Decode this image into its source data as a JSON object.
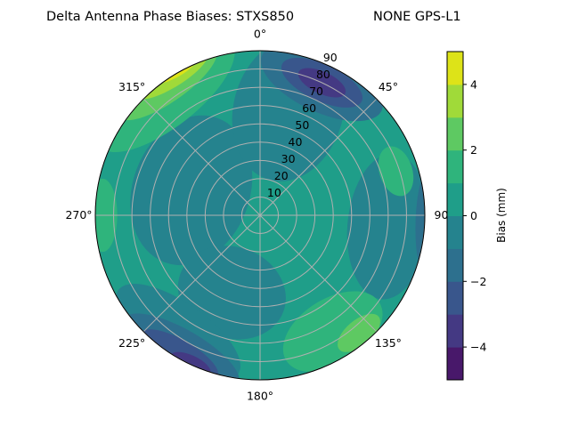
{
  "chart_data": {
    "type": "heatmap",
    "subtype": "polar filled contour",
    "title_left": "Delta Antenna Phase Biases: STXS850",
    "title_right": "NONE GPS-L1",
    "angular_tick_labels": [
      "0°",
      "45°",
      "90",
      "135°",
      "180°",
      "225°",
      "270°",
      "315°"
    ],
    "angular_tick_values": [
      0,
      45,
      90,
      135,
      180,
      225,
      270,
      315
    ],
    "radial_tick_labels": [
      "10",
      "20",
      "30",
      "40",
      "50",
      "60",
      "70",
      "80",
      "90"
    ],
    "radial_range": [
      0,
      90
    ],
    "theta_direction": "clockwise",
    "theta_zero": "north",
    "grid": true,
    "colorbar": {
      "label": "Bias (mm)",
      "levels": [
        -5,
        -4,
        -3,
        -2,
        -1,
        0,
        1,
        2,
        3,
        4,
        5
      ],
      "tick_values": [
        -4,
        -2,
        0,
        2,
        4
      ],
      "tick_labels": [
        "−4",
        "−2",
        "0",
        "2",
        "4"
      ],
      "colormap": "viridis",
      "band_colors": [
        "#48186a",
        "#443983",
        "#39568c",
        "#2d708e",
        "#25838e",
        "#1f9e89",
        "#2fb47c",
        "#5ec962",
        "#a0da39",
        "#dde318"
      ]
    },
    "background_level_band": [
      0,
      1
    ],
    "regions": [
      {
        "az": 290,
        "r": 40,
        "rx": 42,
        "ry": 32,
        "band": [
          -1,
          0
        ]
      },
      {
        "az": 15,
        "r": 60,
        "rx": 30,
        "ry": 40,
        "band": [
          -1,
          0
        ]
      },
      {
        "az": 95,
        "r": 70,
        "rx": 40,
        "ry": 22,
        "band": [
          -1,
          0
        ]
      },
      {
        "az": 200,
        "r": 45,
        "rx": 30,
        "ry": 25,
        "band": [
          -1,
          0
        ]
      },
      {
        "az": 215,
        "r": 78,
        "rx": 40,
        "ry": 16,
        "band": [
          -1,
          0
        ]
      },
      {
        "az": 25,
        "r": 80,
        "rx": 36,
        "ry": 16,
        "band": [
          -2,
          -1
        ]
      },
      {
        "az": 25,
        "r": 80,
        "rx": 24,
        "ry": 10,
        "band": [
          -3,
          -2
        ]
      },
      {
        "az": 25,
        "r": 80,
        "rx": 14,
        "ry": 6,
        "band": [
          -4,
          -3
        ]
      },
      {
        "az": 210,
        "r": 86,
        "rx": 36,
        "ry": 12,
        "band": [
          -2,
          -1
        ]
      },
      {
        "az": 210,
        "r": 88,
        "rx": 24,
        "ry": 8,
        "band": [
          -3,
          -2
        ]
      },
      {
        "az": 205,
        "r": 90,
        "rx": 12,
        "ry": 5,
        "band": [
          -4,
          -3
        ]
      },
      {
        "az": 92,
        "r": 90,
        "rx": 26,
        "ry": 5,
        "band": [
          -2,
          -1
        ]
      },
      {
        "az": 322,
        "r": 84,
        "rx": 46,
        "ry": 18,
        "band": [
          1,
          2
        ]
      },
      {
        "az": 325,
        "r": 88,
        "rx": 32,
        "ry": 10,
        "band": [
          2,
          3
        ]
      },
      {
        "az": 328,
        "r": 90,
        "rx": 22,
        "ry": 6,
        "band": [
          3,
          4
        ]
      },
      {
        "az": 330,
        "r": 91,
        "rx": 12,
        "ry": 3,
        "band": [
          4,
          5
        ]
      },
      {
        "az": 148,
        "r": 75,
        "rx": 30,
        "ry": 18,
        "band": [
          1,
          2
        ]
      },
      {
        "az": 140,
        "r": 84,
        "rx": 14,
        "ry": 7,
        "band": [
          2,
          3
        ]
      },
      {
        "az": 270,
        "r": 86,
        "rx": 20,
        "ry": 8,
        "band": [
          1,
          2
        ]
      },
      {
        "az": 72,
        "r": 78,
        "rx": 14,
        "ry": 9,
        "band": [
          1,
          2
        ]
      }
    ]
  }
}
